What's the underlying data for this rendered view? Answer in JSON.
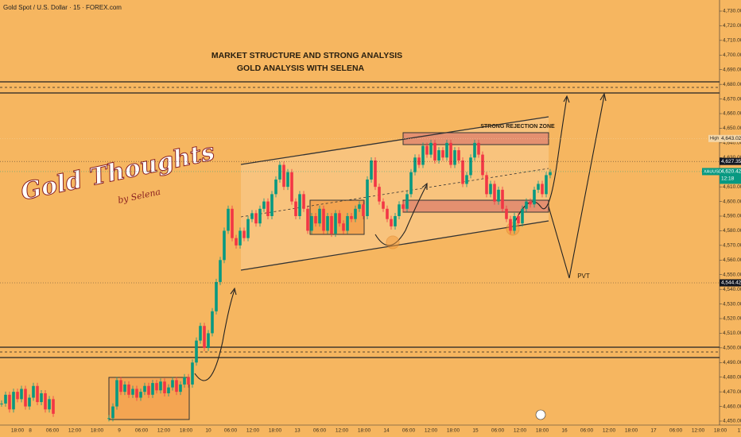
{
  "header": "Gold Spot / U.S. Dollar · 15 · FOREX.com",
  "logo": {
    "title": "Gold Thoughts",
    "byline": "by Selena"
  },
  "chart_data": {
    "type": "candlestick",
    "title": "MARKET STRUCTURE AND STRONG ANALYSIS",
    "subtitle": "GOLD ANALYSIS WITH SELENA",
    "annotations": [
      "STRONG REJECTION ZONE",
      "PVT"
    ],
    "xtick_labels": [
      "18:00",
      "8",
      "06:00",
      "12:00",
      "18:00",
      "9",
      "06:00",
      "12:00",
      "18:00",
      "10",
      "06:00",
      "12:00",
      "18:00",
      "13",
      "06:00",
      "12:00",
      "18:00",
      "14",
      "06:00",
      "12:00",
      "18:00",
      "15",
      "06:00",
      "12:00",
      "18:00",
      "16",
      "06:00",
      "12:00",
      "18:00",
      "17",
      "06:00",
      "12:00",
      "18:00",
      "17:0"
    ],
    "values": [
      4462,
      4468,
      4458,
      4470,
      4465,
      4472,
      4460,
      4466,
      4474,
      4463,
      4469,
      4458,
      4465,
      4455,
      null,
      null,
      null,
      null,
      null,
      null,
      null,
      null,
      null,
      null,
      null,
      null,
      null,
      4452,
      4460,
      4478,
      4470,
      4475,
      4468,
      4472,
      4466,
      4470,
      4474,
      4468,
      4476,
      4471,
      4477,
      4469,
      4473,
      4478,
      4470,
      4475,
      4480,
      4475,
      4490,
      4505,
      4515,
      4500,
      4510,
      4525,
      4545,
      4560,
      4580,
      4595,
      4575,
      4570,
      4580,
      4575,
      4588,
      4592,
      4585,
      4595,
      4600,
      4590,
      4605,
      4615,
      4625,
      4610,
      4620,
      4600,
      4590,
      4605,
      4595,
      4580,
      4590,
      4585,
      4595,
      4580,
      4590,
      4578,
      4592,
      4585,
      4580,
      4590,
      4588,
      4595,
      4598,
      4590,
      4615,
      4628,
      4610,
      4600,
      4595,
      4588,
      4583,
      4590,
      4598,
      4595,
      4605,
      4620,
      4630,
      4625,
      4638,
      4632,
      4640,
      4628,
      4635,
      4630,
      4640,
      4625,
      4635,
      4628,
      4612,
      4618,
      4630,
      4640,
      4632,
      4618,
      4605,
      4612,
      4600,
      4608,
      4595,
      4588,
      4580,
      4590,
      4585,
      4595,
      4600,
      4598,
      4608,
      4612,
      4605,
      4618,
      4620
    ],
    "color_up": "#089981",
    "color_down": "#f23645",
    "ylim": [
      4450,
      4730
    ],
    "yticks": [
      {
        "value": 4450,
        "label": "4,450.00"
      },
      {
        "value": 4460,
        "label": "4,460.00"
      },
      {
        "value": 4470,
        "label": "4,470.00"
      },
      {
        "value": 4480,
        "label": "4,480.00"
      },
      {
        "value": 4490,
        "label": "4,490.00"
      },
      {
        "value": 4500,
        "label": "4,500.00"
      },
      {
        "value": 4510,
        "label": "4,510.00"
      },
      {
        "value": 4520,
        "label": "4,520.00"
      },
      {
        "value": 4530,
        "label": "4,530.00"
      },
      {
        "value": 4540,
        "label": "4,540.00"
      },
      {
        "value": 4550,
        "label": "4,550.00"
      },
      {
        "value": 4560,
        "label": "4,560.00"
      },
      {
        "value": 4570,
        "label": "4,570.00"
      },
      {
        "value": 4580,
        "label": "4,580.00"
      },
      {
        "value": 4590,
        "label": "4,590.00"
      },
      {
        "value": 4600,
        "label": "4,600.00"
      },
      {
        "value": 4610,
        "label": "4,610.00"
      },
      {
        "value": 4620,
        "label": "4,620.00"
      },
      {
        "value": 4630,
        "label": "4,630.00"
      },
      {
        "value": 4640,
        "label": "4,640.00"
      },
      {
        "value": 4650,
        "label": "4,650.00"
      },
      {
        "value": 4660,
        "label": "4,660.00"
      },
      {
        "value": 4670,
        "label": "4,670.00"
      },
      {
        "value": 4680,
        "label": "4,680.00"
      },
      {
        "value": 4690,
        "label": "4,690.00"
      },
      {
        "value": 4700,
        "label": "4,700.00"
      },
      {
        "value": 4710,
        "label": "4,710.00"
      },
      {
        "value": 4720,
        "label": "4,720.00"
      },
      {
        "value": 4730,
        "label": "4,730.00"
      }
    ],
    "price_labels": [
      {
        "name": "High",
        "value": 4643.02,
        "label": "4,643.02",
        "color": "#f3d6a8"
      },
      {
        "value": 4627.35,
        "label": "4,627.35",
        "color": "#131722"
      },
      {
        "name": "XAUUSD",
        "value": 4620.42,
        "label": "4,620.42",
        "time": "12:18",
        "color": "#089981"
      },
      {
        "value": 4544.42,
        "label": "4,544.42",
        "color": "#131722"
      }
    ]
  }
}
